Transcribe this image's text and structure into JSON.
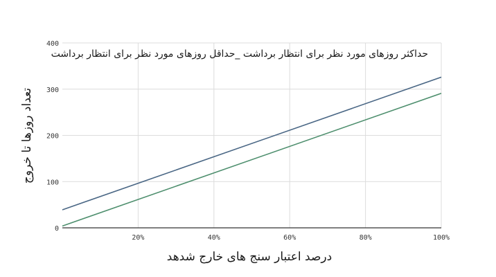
{
  "chart_data": {
    "type": "line",
    "title": "حداکثر روزهای مورد نظر برای انتظار برداشت _حداقل روزهای مورد نظر برای انتظار برداشت",
    "xlabel": "درصد اعتبار سنج های خارج شدهد",
    "ylabel": "تعداد روزها تا خروج",
    "xlim": [
      0,
      100
    ],
    "ylim": [
      0,
      400
    ],
    "x_ticks": [
      20,
      40,
      60,
      80,
      100
    ],
    "x_tick_labels": [
      "20%",
      "40%",
      "60%",
      "80%",
      "100%"
    ],
    "y_ticks": [
      0,
      100,
      200,
      300,
      400
    ],
    "y_tick_labels": [
      "0",
      "100",
      "200",
      "300",
      "400"
    ],
    "grid": true,
    "legend": "none",
    "series": [
      {
        "values_x": [
          0,
          100
        ],
        "values_y": [
          39,
          326
        ],
        "color": "#4a6785"
      },
      {
        "values_x": [
          0,
          100
        ],
        "values_y": [
          4,
          291
        ],
        "color": "#4e8f6e"
      }
    ]
  }
}
